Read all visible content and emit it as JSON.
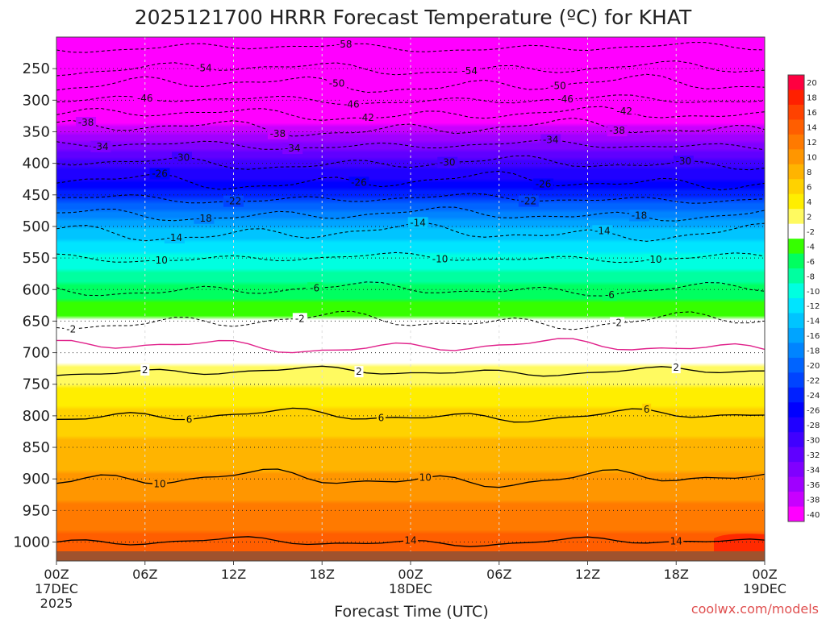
{
  "chart_data": {
    "type": "heatmap",
    "title": "2025121700 HRRR Forecast Temperature (ºC) for KHAT",
    "xlabel": "Forecast Time (UTC)",
    "ylabel": "",
    "credit": "coolwx.com/models",
    "x_ticks": [
      {
        "hours": 0,
        "label": "00Z",
        "sub": [
          "17DEC",
          "2025"
        ]
      },
      {
        "hours": 6,
        "label": "06Z",
        "sub": []
      },
      {
        "hours": 12,
        "label": "12Z",
        "sub": []
      },
      {
        "hours": 18,
        "label": "18Z",
        "sub": []
      },
      {
        "hours": 24,
        "label": "00Z",
        "sub": [
          "18DEC"
        ]
      },
      {
        "hours": 30,
        "label": "06Z",
        "sub": []
      },
      {
        "hours": 36,
        "label": "12Z",
        "sub": []
      },
      {
        "hours": 42,
        "label": "18Z",
        "sub": []
      },
      {
        "hours": 48,
        "label": "00Z",
        "sub": [
          "19DEC"
        ]
      }
    ],
    "xlim": [
      0,
      48
    ],
    "y_ticks": [
      "250",
      "300",
      "350",
      "400",
      "450",
      "500",
      "550",
      "600",
      "650",
      "700",
      "750",
      "800",
      "850",
      "900",
      "950",
      "1000"
    ],
    "ylim_hPa": [
      200,
      1030
    ],
    "colorbar": {
      "labels": [
        "20",
        "18",
        "16",
        "14",
        "12",
        "10",
        "8",
        "6",
        "4",
        "2",
        "-2",
        "-4",
        "-6",
        "-8",
        "-10",
        "-12",
        "-14",
        "-16",
        "-18",
        "-20",
        "-22",
        "-24",
        "-26",
        "-28",
        "-30",
        "-32",
        "-34",
        "-36",
        "-38",
        "-40"
      ],
      "values": [
        20,
        18,
        16,
        14,
        12,
        10,
        8,
        6,
        4,
        2,
        -2,
        -4,
        -6,
        -8,
        -10,
        -12,
        -14,
        -16,
        -18,
        -20,
        -22,
        -24,
        -26,
        -28,
        -30,
        -32,
        -34,
        -36,
        -38,
        -40
      ],
      "colors": [
        "#ff0040",
        "#ff2000",
        "#ff4200",
        "#ff5e00",
        "#ff7a00",
        "#ff9600",
        "#ffb400",
        "#ffd200",
        "#ffee00",
        "#fffa60",
        "#ffffff",
        "#36ff00",
        "#00ff60",
        "#00ffa0",
        "#00ffe0",
        "#00e4ff",
        "#00c4ff",
        "#00a4ff",
        "#0084ff",
        "#0064ff",
        "#0044ff",
        "#0020ff",
        "#0000ff",
        "#2000ff",
        "#4000ff",
        "#6000ff",
        "#8000ff",
        "#a000ff",
        "#c800ff",
        "#ff00ff"
      ]
    },
    "temperature_profile": [
      {
        "hPa": 200,
        "t": -60
      },
      {
        "hPa": 250,
        "t": -54
      },
      {
        "hPa": 300,
        "t": -46
      },
      {
        "hPa": 350,
        "t": -37
      },
      {
        "hPa": 400,
        "t": -30
      },
      {
        "hPa": 450,
        "t": -23
      },
      {
        "hPa": 500,
        "t": -15
      },
      {
        "hPa": 550,
        "t": -10
      },
      {
        "hPa": 600,
        "t": -6
      },
      {
        "hPa": 650,
        "t": -2
      },
      {
        "hPa": 690,
        "t": 0
      },
      {
        "hPa": 750,
        "t": 3
      },
      {
        "hPa": 800,
        "t": 6
      },
      {
        "hPa": 850,
        "t": 8
      },
      {
        "hPa": 900,
        "t": 10
      },
      {
        "hPa": 950,
        "t": 12
      },
      {
        "hPa": 1000,
        "t": 14
      },
      {
        "hPa": 1030,
        "t": 15
      }
    ],
    "contours": [
      {
        "label": "-58",
        "positions": [
          {
            "h": 19.5
          }
        ]
      },
      {
        "label": "-54",
        "positions": [
          {
            "h": 10
          },
          {
            "h": 28
          }
        ]
      },
      {
        "label": "-50",
        "positions": [
          {
            "h": 19
          },
          {
            "h": 34
          }
        ]
      },
      {
        "label": "-46",
        "positions": [
          {
            "h": 6
          },
          {
            "h": 20
          },
          {
            "h": 34.5
          }
        ]
      },
      {
        "label": "-42",
        "positions": [
          {
            "h": 21
          },
          {
            "h": 38.5
          }
        ]
      },
      {
        "label": "-38",
        "positions": [
          {
            "h": 2
          },
          {
            "h": 15
          },
          {
            "h": 38
          }
        ]
      },
      {
        "label": "-34",
        "positions": [
          {
            "h": 3
          },
          {
            "h": 16
          },
          {
            "h": 33.5
          }
        ]
      },
      {
        "label": "-30",
        "positions": [
          {
            "h": 8.5
          },
          {
            "h": 26.5
          },
          {
            "h": 42.5
          }
        ]
      },
      {
        "label": "-26",
        "positions": [
          {
            "h": 7
          },
          {
            "h": 20.5
          },
          {
            "h": 33
          }
        ]
      },
      {
        "label": "-22",
        "positions": [
          {
            "h": 12
          },
          {
            "h": 32
          }
        ]
      },
      {
        "label": "-18",
        "positions": [
          {
            "h": 10
          },
          {
            "h": 39.5
          }
        ]
      },
      {
        "label": "-14",
        "positions": [
          {
            "h": 8
          },
          {
            "h": 24.5
          },
          {
            "h": 37
          }
        ]
      },
      {
        "label": "-10",
        "positions": [
          {
            "h": 7
          },
          {
            "h": 26
          },
          {
            "h": 40.5
          }
        ]
      },
      {
        "label": "-6",
        "positions": [
          {
            "h": 17.5
          },
          {
            "h": 37.5
          }
        ]
      },
      {
        "label": "-2",
        "positions": [
          {
            "h": 1
          },
          {
            "h": 16.5
          },
          {
            "h": 38
          }
        ]
      },
      {
        "label": "2",
        "positions": [
          {
            "h": 6
          },
          {
            "h": 20.5
          },
          {
            "h": 42
          }
        ]
      },
      {
        "label": "6",
        "positions": [
          {
            "h": 9
          },
          {
            "h": 22
          },
          {
            "h": 40
          }
        ]
      },
      {
        "label": "10",
        "positions": [
          {
            "h": 7
          },
          {
            "h": 25
          }
        ]
      },
      {
        "label": "14",
        "positions": [
          {
            "h": 24
          },
          {
            "h": 42
          }
        ]
      }
    ]
  }
}
